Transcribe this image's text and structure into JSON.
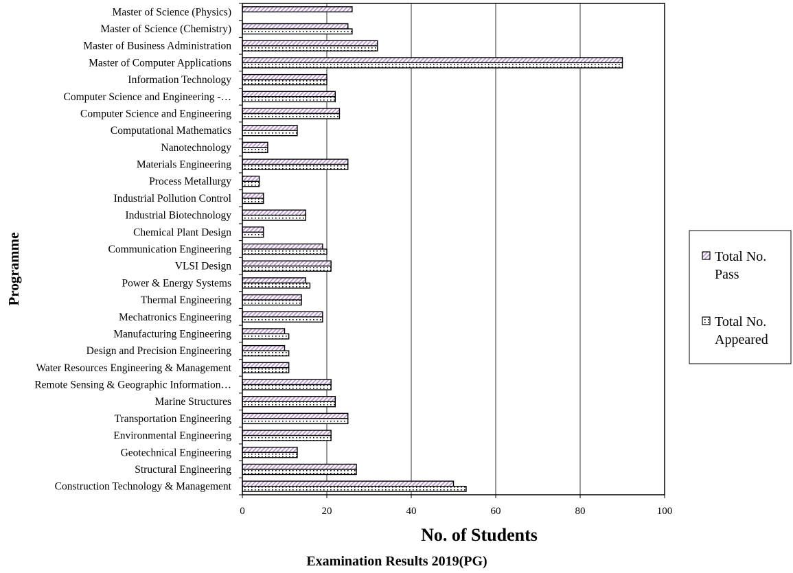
{
  "chart_data": {
    "type": "bar",
    "orientation": "horizontal",
    "categories": [
      "Construction Technology & Management",
      "Structural Engineering",
      "Geotechnical Engineering",
      "Environmental Engineering",
      "Transportation Engineering",
      "Marine Structures",
      "Remote Sensing & Geographic Information…",
      "Water Resources Engineering & Management",
      "Design and Precision Engineering",
      "Manufacturing Engineering",
      "Mechatronics Engineering",
      "Thermal Engineering",
      "Power & Energy Systems",
      "VLSI Design",
      "Communication Engineering",
      "Chemical Plant Design",
      "Industrial Biotechnology",
      "Industrial Pollution Control",
      "Process Metallurgy",
      "Materials Engineering",
      "Nanotechnology",
      "Computational Mathematics",
      "Computer Science and Engineering",
      "Computer Science and Engineering -…",
      "Information Technology",
      "Master of Computer Applications",
      "Master of Business Administration",
      "Master of Science (Chemistry)",
      "Master of Science (Physics)"
    ],
    "series": [
      {
        "name": "Total No. Pass",
        "color": "#c9a9d8",
        "values": [
          50,
          27,
          13,
          21,
          25,
          22,
          21,
          11,
          10,
          10,
          19,
          14,
          15,
          21,
          19,
          5,
          15,
          5,
          4,
          25,
          6,
          13,
          23,
          22,
          20,
          90,
          32,
          25,
          26
        ]
      },
      {
        "name": "Total No. Appeared",
        "color": "#000000",
        "values": [
          53,
          27,
          13,
          21,
          25,
          22,
          21,
          11,
          11,
          11,
          19,
          14,
          16,
          21,
          20,
          5,
          15,
          5,
          4,
          25,
          6,
          13,
          23,
          22,
          20,
          90,
          32,
          26,
          null
        ]
      }
    ],
    "xlim": [
      0,
      100
    ],
    "xticks": [
      "0",
      "20",
      "40",
      "60",
      "80",
      "100"
    ],
    "grid": "vertical",
    "legend_position": "right",
    "xlabel": "No. of Students",
    "ylabel": "Programme",
    "caption": "Examination Results 2019(PG)"
  },
  "legend": {
    "items": [
      {
        "line1": "Total No.",
        "line2": "Pass"
      },
      {
        "line1": "Total No.",
        "line2": "Appeared"
      }
    ]
  }
}
